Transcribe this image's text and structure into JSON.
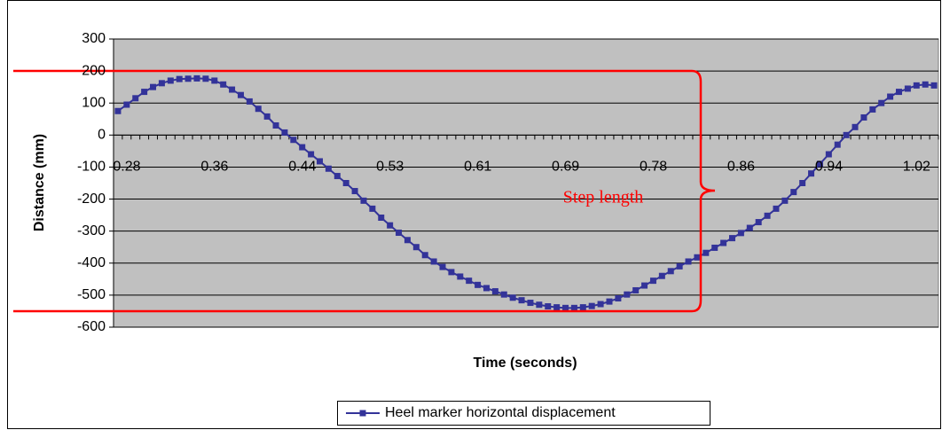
{
  "chart_data": {
    "type": "line",
    "x_label": "Time (seconds)",
    "y_label": "Distance (mm)",
    "annotation": "Step length",
    "categories": [
      "0.28",
      null,
      null,
      null,
      null,
      null,
      null,
      null,
      null,
      null,
      "0.36",
      null,
      null,
      null,
      null,
      null,
      null,
      null,
      null,
      null,
      "0.44",
      null,
      null,
      null,
      null,
      null,
      null,
      null,
      null,
      null,
      "0.53",
      null,
      null,
      null,
      null,
      null,
      null,
      null,
      null,
      null,
      "0.61",
      null,
      null,
      null,
      null,
      null,
      null,
      null,
      null,
      null,
      "0.69",
      null,
      null,
      null,
      null,
      null,
      null,
      null,
      null,
      null,
      "0.78",
      null,
      null,
      null,
      null,
      null,
      null,
      null,
      null,
      null,
      "0.86",
      null,
      null,
      null,
      null,
      null,
      null,
      null,
      null,
      null,
      "0.94",
      null,
      null,
      null,
      null,
      null,
      null,
      null,
      null,
      null,
      "1.02",
      null,
      null,
      null
    ],
    "series": [
      {
        "name": "Heel marker horizontal displacement",
        "color": "#333399",
        "values": [
          75,
          95,
          115,
          135,
          150,
          162,
          170,
          175,
          176,
          177,
          176,
          170,
          158,
          142,
          125,
          105,
          82,
          58,
          30,
          8,
          -15,
          -38,
          -60,
          -82,
          -105,
          -128,
          -150,
          -175,
          -205,
          -230,
          -258,
          -282,
          -305,
          -328,
          -350,
          -375,
          -395,
          -412,
          -428,
          -442,
          -455,
          -468,
          -478,
          -488,
          -498,
          -508,
          -516,
          -524,
          -530,
          -535,
          -538,
          -540,
          -540,
          -538,
          -534,
          -528,
          -520,
          -510,
          -498,
          -485,
          -470,
          -455,
          -440,
          -425,
          -410,
          -395,
          -382,
          -368,
          -352,
          -337,
          -322,
          -306,
          -290,
          -272,
          -252,
          -230,
          -205,
          -178,
          -150,
          -120,
          -90,
          -60,
          -30,
          0,
          25,
          55,
          80,
          100,
          120,
          135,
          145,
          155,
          158,
          155
        ]
      }
    ],
    "ylim": [
      -600,
      300
    ],
    "yticks": [
      -600,
      -500,
      -400,
      -300,
      -200,
      -100,
      0,
      100,
      200,
      300
    ],
    "grid": true,
    "plot_background": "#c0c0c0",
    "legend": "bottom"
  }
}
